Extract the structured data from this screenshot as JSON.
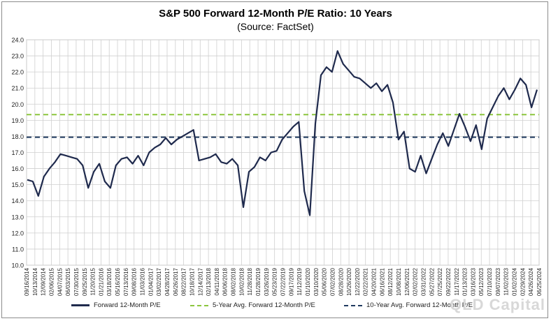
{
  "chart_data": {
    "type": "line",
    "title": "S&P 500 Forward 12-Month P/E Ratio: 10 Years",
    "subtitle": "(Source: FactSet)",
    "ylim": [
      10.0,
      24.0
    ],
    "y_ticks": [
      "10.0",
      "11.0",
      "12.0",
      "13.0",
      "14.0",
      "15.0",
      "16.0",
      "17.0",
      "18.0",
      "19.0",
      "20.0",
      "21.0",
      "22.0",
      "23.0",
      "24.0"
    ],
    "grid": true,
    "x_tick_labels": [
      "09/16/2014",
      "10/13/2014",
      "12/09/2014",
      "02/06/2015",
      "04/07/2015",
      "06/03/2015",
      "07/30/2015",
      "09/25/2015",
      "11/20/2015",
      "01/21/2016",
      "03/18/2016",
      "05/16/2016",
      "07/13/2016",
      "09/08/2016",
      "11/03/2016",
      "01/04/2017",
      "03/02/2017",
      "04/28/2017",
      "06/26/2017",
      "08/22/2017",
      "10/18/2017",
      "12/14/2017",
      "02/13/2018",
      "04/11/2018",
      "06/06/2018",
      "08/02/2018",
      "10/02/2018",
      "11/28/2018",
      "01/28/2019",
      "03/26/2019",
      "05/23/2019",
      "07/22/2019",
      "09/17/2019",
      "11/12/2019",
      "01/10/2020",
      "03/10/2020",
      "05/06/2020",
      "07/02/2020",
      "08/28/2020",
      "10/26/2020",
      "12/22/2020",
      "02/22/2021",
      "04/20/2021",
      "06/16/2021",
      "08/12/2021",
      "10/08/2021",
      "12/06/2021",
      "02/02/2022",
      "03/31/2022",
      "05/27/2022",
      "07/25/2022",
      "09/22/2022",
      "11/17/2022",
      "01/13/2023",
      "03/16/2023",
      "05/12/2023",
      "07/10/2023",
      "09/07/2023",
      "11/02/2023",
      "01/02/2024",
      "02/29/2024",
      "04/26/2024",
      "06/25/2024"
    ],
    "series": [
      {
        "name": "Forward 12-Month P/E",
        "color": "#1f2a4d",
        "style": "solid",
        "values": [
          15.3,
          15.2,
          14.3,
          15.5,
          16.0,
          16.4,
          16.9,
          16.8,
          16.7,
          16.6,
          16.2,
          14.8,
          15.8,
          16.3,
          15.2,
          14.8,
          16.2,
          16.6,
          16.7,
          16.3,
          16.8,
          16.2,
          17.0,
          17.3,
          17.5,
          17.9,
          17.5,
          17.8,
          18.0,
          18.2,
          18.4,
          16.5,
          16.6,
          16.7,
          16.9,
          16.4,
          16.3,
          16.6,
          16.2,
          13.6,
          15.8,
          16.1,
          16.7,
          16.5,
          17.0,
          17.1,
          17.8,
          18.2,
          18.6,
          18.9,
          14.6,
          13.1,
          18.8,
          21.8,
          22.3,
          22.0,
          23.3,
          22.5,
          22.1,
          21.7,
          21.6,
          21.3,
          21.0,
          21.3,
          20.8,
          21.2,
          20.1,
          17.8,
          18.3,
          16.0,
          15.8,
          16.8,
          15.7,
          16.6,
          17.5,
          18.2,
          17.4,
          18.4,
          19.4,
          18.6,
          17.7,
          18.7,
          17.2,
          19.1,
          19.8,
          20.5,
          21.0,
          20.3,
          20.9,
          21.6,
          21.2,
          19.8,
          20.9
        ]
      },
      {
        "name": "5-Year Avg. Forward 12-Month P/E",
        "color": "#8cc63e",
        "style": "dashed",
        "value": 19.35
      },
      {
        "name": "10-Year Avg. Forward 12-Month P/E",
        "color": "#1f3a5f",
        "style": "dashed",
        "value": 17.95
      }
    ],
    "legend_position": "bottom"
  },
  "watermark": "QLD Capital"
}
